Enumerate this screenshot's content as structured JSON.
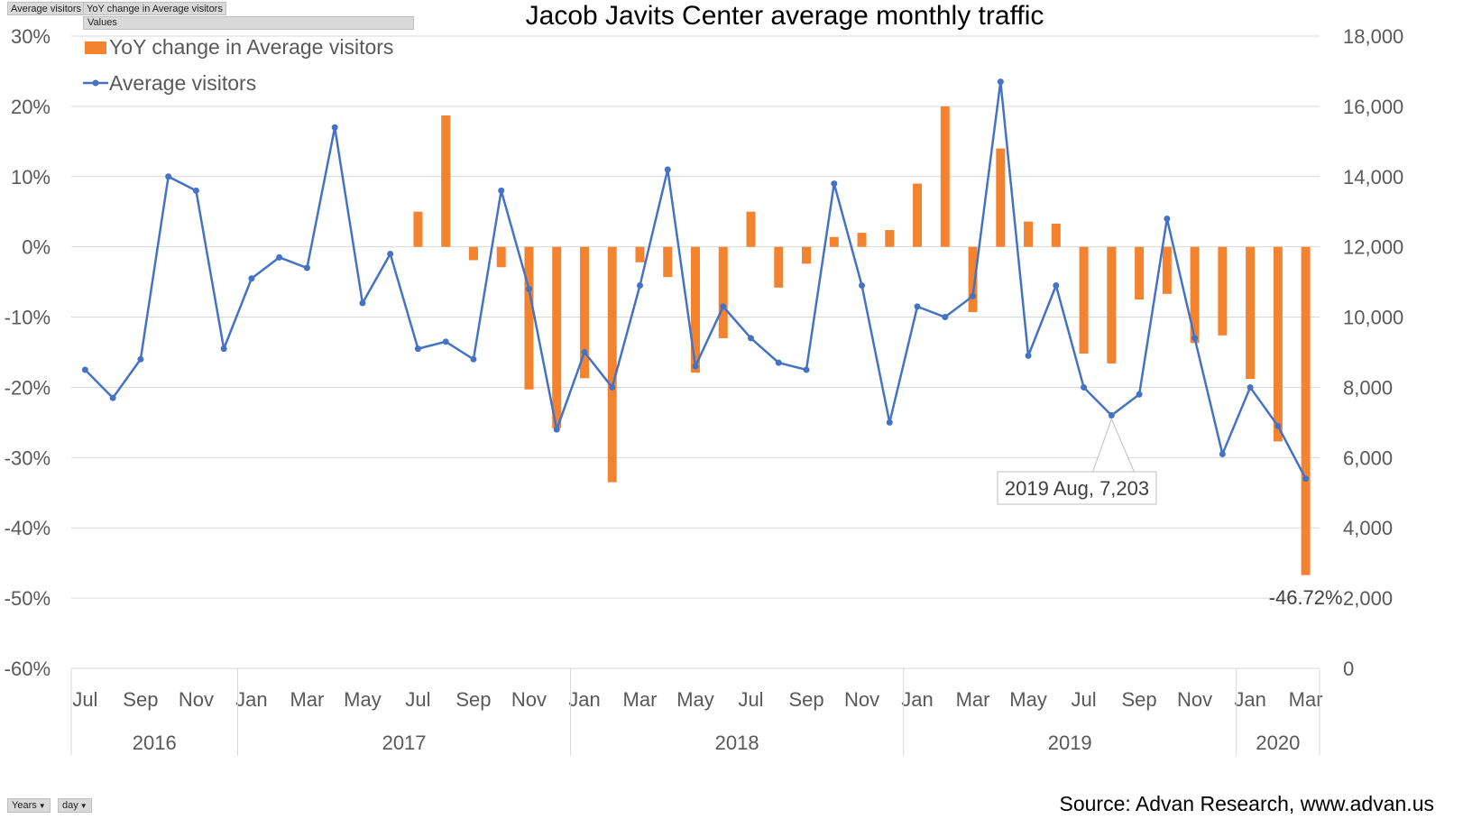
{
  "pivot": {
    "field_buttons": [
      "Average visitors",
      "YoY change in Average visitors"
    ],
    "values_button": "Values",
    "filters": [
      {
        "label": "Years",
        "icon": "filter-dropdown-icon"
      },
      {
        "label": "day",
        "icon": "filter-dropdown-icon"
      }
    ]
  },
  "source": "Source: Advan Research, www.advan.us",
  "chart_data": {
    "type": "bar+line",
    "title": "Jacob Javits Center average monthly traffic",
    "categories": [
      "Jul",
      "Aug",
      "Sep",
      "Oct",
      "Nov",
      "Dec",
      "Jan",
      "Feb",
      "Mar",
      "Apr",
      "May",
      "Jun",
      "Jul",
      "Aug",
      "Sep",
      "Oct",
      "Nov",
      "Dec",
      "Jan",
      "Feb",
      "Mar",
      "Apr",
      "May",
      "Jun",
      "Jul",
      "Aug",
      "Sep",
      "Oct",
      "Nov",
      "Dec",
      "Jan",
      "Feb",
      "Mar",
      "Apr",
      "May",
      "Jun",
      "Jul",
      "Aug",
      "Sep",
      "Oct",
      "Nov",
      "Dec",
      "Jan",
      "Feb",
      "Mar"
    ],
    "tick_labels": [
      "Jul",
      "",
      "Sep",
      "",
      "Nov",
      "",
      "Jan",
      "",
      "Mar",
      "",
      "May",
      "",
      "Jul",
      "",
      "Sep",
      "",
      "Nov",
      "",
      "Jan",
      "",
      "Mar",
      "",
      "May",
      "",
      "Jul",
      "",
      "Sep",
      "",
      "Nov",
      "",
      "Jan",
      "",
      "Mar",
      "",
      "May",
      "",
      "Jul",
      "",
      "Sep",
      "",
      "Nov",
      "",
      "Jan",
      "",
      "Mar"
    ],
    "years": [
      {
        "label": "2016",
        "count": 6
      },
      {
        "label": "2017",
        "count": 12
      },
      {
        "label": "2018",
        "count": 12
      },
      {
        "label": "2019",
        "count": 12
      },
      {
        "label": "2020",
        "count": 3
      }
    ],
    "series": [
      {
        "name": "YoY change in Average visitors",
        "type": "bar",
        "axis": "left",
        "color": "#f4832f",
        "values": [
          null,
          null,
          null,
          null,
          null,
          null,
          null,
          null,
          null,
          null,
          null,
          null,
          5.0,
          18.7,
          -1.9,
          -2.9,
          -20.3,
          -25.8,
          -18.7,
          -33.5,
          -2.2,
          -4.3,
          -17.9,
          -13.0,
          5.0,
          -5.8,
          -2.4,
          1.4,
          2.0,
          2.4,
          9.0,
          20.0,
          -9.3,
          14.0,
          3.6,
          3.3,
          -15.2,
          -16.6,
          -7.5,
          -6.7,
          -13.7,
          -12.6,
          -18.8,
          -27.7,
          -46.72
        ]
      },
      {
        "name": "Average visitors",
        "type": "line",
        "axis": "right",
        "color": "#4472c4",
        "values": [
          8500,
          7700,
          8800,
          14000,
          13600,
          9100,
          11100,
          11700,
          11400,
          15400,
          10400,
          11800,
          9100,
          9300,
          8800,
          13600,
          10800,
          6800,
          9000,
          8000,
          10900,
          14200,
          8600,
          10300,
          9400,
          8700,
          8500,
          13800,
          10900,
          7000,
          10300,
          10000,
          10600,
          16700,
          8900,
          10900,
          8000,
          7203,
          7800,
          12800,
          9400,
          6100,
          8000,
          6900,
          5400
        ]
      }
    ],
    "y_left": {
      "min": -60,
      "max": 30,
      "step": 10,
      "tick_labels": [
        "30%",
        "20%",
        "10%",
        "0%",
        "-10%",
        "-20%",
        "-30%",
        "-40%",
        "-50%",
        "-60%"
      ]
    },
    "y_right": {
      "min": 0,
      "max": 18000,
      "step": 2000,
      "tick_labels": [
        "18,000",
        "16,000",
        "14,000",
        "12,000",
        "10,000",
        "8,000",
        "6,000",
        "4,000",
        "2,000",
        "0"
      ]
    },
    "annotations": [
      {
        "label": "2019 Aug, 7,203",
        "index": 37,
        "series": "Average visitors"
      },
      {
        "label": "-46.72%",
        "index": 44,
        "series": "YoY change in Average visitors"
      }
    ],
    "legend_position": "top-left",
    "grid": true
  }
}
